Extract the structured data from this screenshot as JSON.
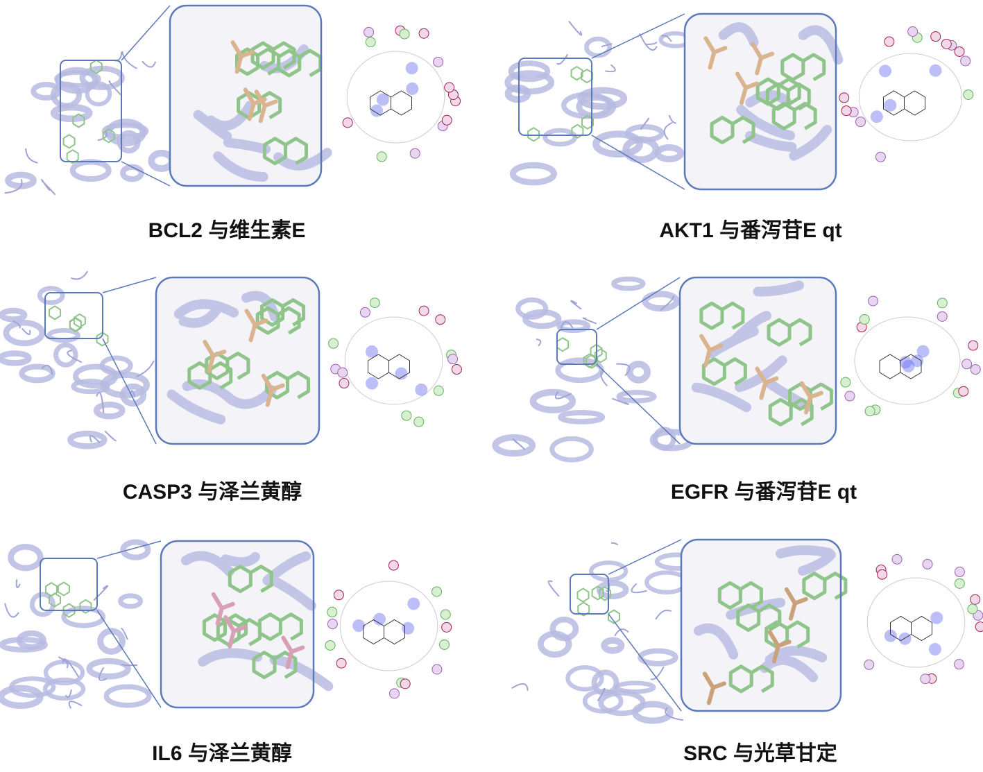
{
  "panels": [
    {
      "caption": "BCL2 与维生素E"
    },
    {
      "caption": "AKT1 与番泻苷E qt"
    },
    {
      "caption": "CASP3 与泽兰黄醇"
    },
    {
      "caption": "EGFR 与番泻苷E qt"
    },
    {
      "caption": "IL6 与泽兰黄醇"
    },
    {
      "caption": "SRC 与光草甘定"
    }
  ]
}
